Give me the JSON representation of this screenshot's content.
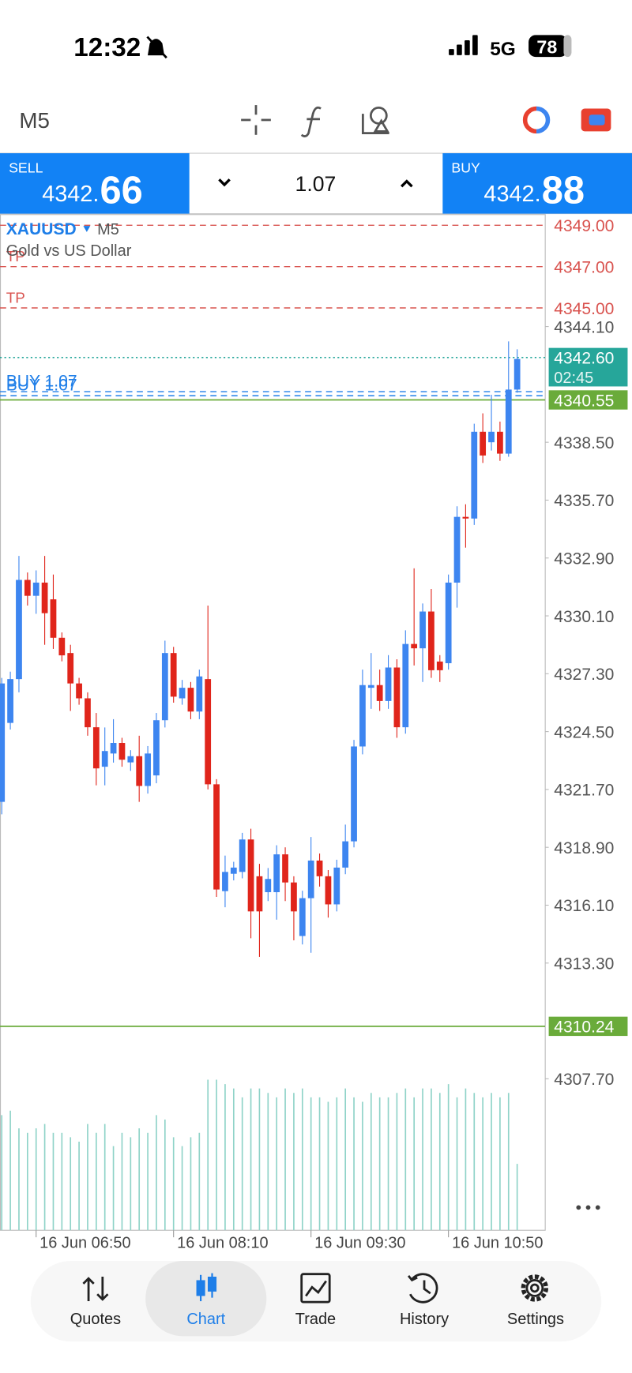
{
  "status_bar": {
    "time": "12:32",
    "network": "5G",
    "battery": "78"
  },
  "toolbar": {
    "timeframe": "M5"
  },
  "trade_panel": {
    "sell": {
      "label": "SELL",
      "price_main": "4342.",
      "price_big": "66"
    },
    "volume": "1.07",
    "buy": {
      "label": "BUY",
      "price_main": "4342.",
      "price_big": "88"
    }
  },
  "chart_data": {
    "type": "candlestick",
    "symbol": "XAUUSD",
    "timeframe": "M5",
    "description": "Gold vs US Dollar",
    "up_color": "#3d85f0",
    "down_color": "#e0251b",
    "volume_color": "#8fd3c8",
    "categories": [
      null,
      null,
      null,
      null,
      "16 Jun 06:50",
      null,
      null,
      null,
      null,
      null,
      null,
      null,
      null,
      null,
      null,
      null,
      null,
      null,
      null,
      null,
      "16 Jun 08:10",
      null,
      null,
      null,
      null,
      null,
      null,
      null,
      null,
      null,
      null,
      null,
      null,
      null,
      null,
      null,
      "16 Jun 09:30",
      null,
      null,
      null,
      null,
      null,
      null,
      null,
      null,
      null,
      null,
      null,
      null,
      null,
      null,
      null,
      "16 Jun 10:50",
      null,
      null,
      null,
      null,
      null,
      null,
      null,
      null
    ],
    "candles": [
      [
        4321.1,
        4327.1,
        4320.5,
        4326.83
      ],
      [
        4324.92,
        4327.4,
        4324.6,
        4327.04
      ],
      [
        4327.04,
        4333.0,
        4326.4,
        4331.84
      ],
      [
        4331.84,
        4332.2,
        4330.6,
        4331.07
      ],
      [
        4331.07,
        4332.3,
        4330.2,
        4331.71
      ],
      [
        4331.71,
        4333.0,
        4328.7,
        4330.23
      ],
      [
        4330.9,
        4332.1,
        4328.5,
        4329.04
      ],
      [
        4329.04,
        4329.3,
        4327.9,
        4328.19
      ],
      [
        4328.3,
        4328.7,
        4325.5,
        4326.83
      ],
      [
        4326.83,
        4327.1,
        4325.8,
        4326.11
      ],
      [
        4326.11,
        4326.4,
        4324.3,
        4324.71
      ],
      [
        4324.71,
        4325.4,
        4321.9,
        4322.72
      ],
      [
        4322.8,
        4324.7,
        4321.9,
        4323.56
      ],
      [
        4323.44,
        4325.1,
        4323.0,
        4323.95
      ],
      [
        4323.95,
        4324.2,
        4322.8,
        4323.14
      ],
      [
        4323.01,
        4323.6,
        4322.6,
        4323.31
      ],
      [
        4323.31,
        4324.3,
        4321.1,
        4321.87
      ],
      [
        4321.87,
        4323.8,
        4321.5,
        4323.44
      ],
      [
        4322.38,
        4325.4,
        4322.0,
        4325.05
      ],
      [
        4325.05,
        4328.9,
        4324.7,
        4328.3
      ],
      [
        4328.3,
        4328.6,
        4325.9,
        4326.19
      ],
      [
        4326.11,
        4327.0,
        4325.8,
        4326.62
      ],
      [
        4326.62,
        4326.9,
        4325.1,
        4325.47
      ],
      [
        4325.47,
        4327.5,
        4325.1,
        4327.17
      ],
      [
        4327.04,
        4330.6,
        4321.7,
        4321.95
      ],
      [
        4321.95,
        4322.2,
        4316.5,
        4316.86
      ],
      [
        4316.78,
        4318.5,
        4316.0,
        4317.71
      ],
      [
        4317.62,
        4318.2,
        4317.3,
        4317.92
      ],
      [
        4317.71,
        4319.6,
        4317.4,
        4319.28
      ],
      [
        4319.28,
        4319.8,
        4314.5,
        4315.8
      ],
      [
        4317.5,
        4318.1,
        4313.6,
        4315.8
      ],
      [
        4316.73,
        4317.9,
        4316.3,
        4317.37
      ],
      [
        4316.73,
        4319.0,
        4315.4,
        4318.56
      ],
      [
        4318.56,
        4318.9,
        4316.3,
        4317.2
      ],
      [
        4317.2,
        4317.5,
        4314.4,
        4315.8
      ],
      [
        4314.61,
        4316.8,
        4314.2,
        4316.44
      ],
      [
        4316.44,
        4319.4,
        4313.8,
        4318.26
      ],
      [
        4318.26,
        4318.6,
        4317.0,
        4317.5
      ],
      [
        4317.5,
        4317.8,
        4315.5,
        4316.14
      ],
      [
        4316.14,
        4318.3,
        4315.8,
        4317.92
      ],
      [
        4317.92,
        4320.0,
        4317.6,
        4319.19
      ],
      [
        4319.19,
        4324.1,
        4318.9,
        4323.78
      ],
      [
        4323.78,
        4327.5,
        4323.4,
        4326.75
      ],
      [
        4326.62,
        4328.3,
        4325.6,
        4326.75
      ],
      [
        4326.75,
        4327.5,
        4325.5,
        4325.98
      ],
      [
        4325.98,
        4328.2,
        4325.6,
        4327.6
      ],
      [
        4327.6,
        4328.0,
        4324.2,
        4324.71
      ],
      [
        4324.71,
        4329.4,
        4324.4,
        4328.74
      ],
      [
        4328.74,
        4332.4,
        4327.7,
        4328.53
      ],
      [
        4328.53,
        4330.7,
        4326.9,
        4330.31
      ],
      [
        4330.31,
        4331.4,
        4327.1,
        4327.47
      ],
      [
        4327.89,
        4328.2,
        4326.9,
        4327.47
      ],
      [
        4327.81,
        4332.1,
        4327.5,
        4331.71
      ],
      [
        4331.71,
        4335.4,
        4330.5,
        4334.89
      ],
      [
        4334.89,
        4335.5,
        4333.4,
        4334.81
      ],
      [
        4334.81,
        4339.4,
        4334.5,
        4339.01
      ],
      [
        4339.01,
        4339.9,
        4337.5,
        4337.86
      ],
      [
        4338.5,
        4340.8,
        4338.1,
        4339.01
      ],
      [
        4339.01,
        4339.5,
        4337.6,
        4337.95
      ],
      [
        4337.95,
        4343.38,
        4337.8,
        4341.05
      ],
      [
        4341.05,
        4343.0,
        4340.9,
        4342.53
      ]
    ],
    "volume": [
      130,
      135,
      115,
      110,
      115,
      120,
      110,
      110,
      105,
      100,
      120,
      110,
      120,
      95,
      110,
      105,
      115,
      110,
      130,
      125,
      105,
      95,
      105,
      110,
      170,
      170,
      165,
      160,
      150,
      160,
      160,
      155,
      150,
      160,
      155,
      160,
      150,
      150,
      145,
      150,
      160,
      150,
      145,
      155,
      150,
      150,
      155,
      160,
      150,
      160,
      160,
      155,
      165,
      150,
      160,
      155,
      150,
      155,
      150,
      155,
      75
    ],
    "ylim": [
      4300.37,
      4349.52
    ],
    "yticks": [
      {
        "value": 4307.7,
        "label": "4307.70"
      },
      {
        "value": 4313.3,
        "label": "4313.30"
      },
      {
        "value": 4316.1,
        "label": "4316.10"
      },
      {
        "value": 4318.9,
        "label": "4318.90"
      },
      {
        "value": 4321.7,
        "label": "4321.70"
      },
      {
        "value": 4324.5,
        "label": "4324.50"
      },
      {
        "value": 4327.3,
        "label": "4327.30"
      },
      {
        "value": 4330.1,
        "label": "4330.10"
      },
      {
        "value": 4332.9,
        "label": "4332.90"
      },
      {
        "value": 4335.7,
        "label": "4335.70"
      },
      {
        "value": 4338.5,
        "label": "4338.50"
      },
      {
        "value": 4344.1,
        "label": "4344.10"
      }
    ],
    "levels": [
      {
        "price": {
          "value": 4349,
          "label": "4349.00"
        },
        "color": "#d9534f",
        "style": "dashed"
      },
      {
        "price": {
          "value": 4347,
          "label": "4347.00"
        },
        "text": "TP",
        "color": "#d9534f",
        "style": "dashed"
      },
      {
        "price": {
          "value": 4345,
          "label": "4345.00"
        },
        "text": "TP",
        "color": "#d9534f",
        "style": "dashed"
      },
      {
        "price": {
          "value": 4340.95
        },
        "text": "BUY 1.07",
        "color": "#1e7ee8",
        "style": "dashed"
      },
      {
        "price": {
          "value": 4340.75
        },
        "text": "BUY 1.07",
        "color": "#1e7ee8",
        "style": "dashed"
      }
    ],
    "last_price": {
      "value": 4342.6,
      "label": "4342.60",
      "countdown": "02:45",
      "color": "#26a69a"
    },
    "bid_price": {
      "value": 4340.55,
      "label": "4340.55",
      "color": "#6aab3a"
    },
    "low_line": {
      "value": 4310.24,
      "label": "4310.24",
      "color": "#6aab3a"
    }
  },
  "nav": [
    "Quotes",
    "Chart",
    "Trade",
    "History",
    "Settings"
  ]
}
